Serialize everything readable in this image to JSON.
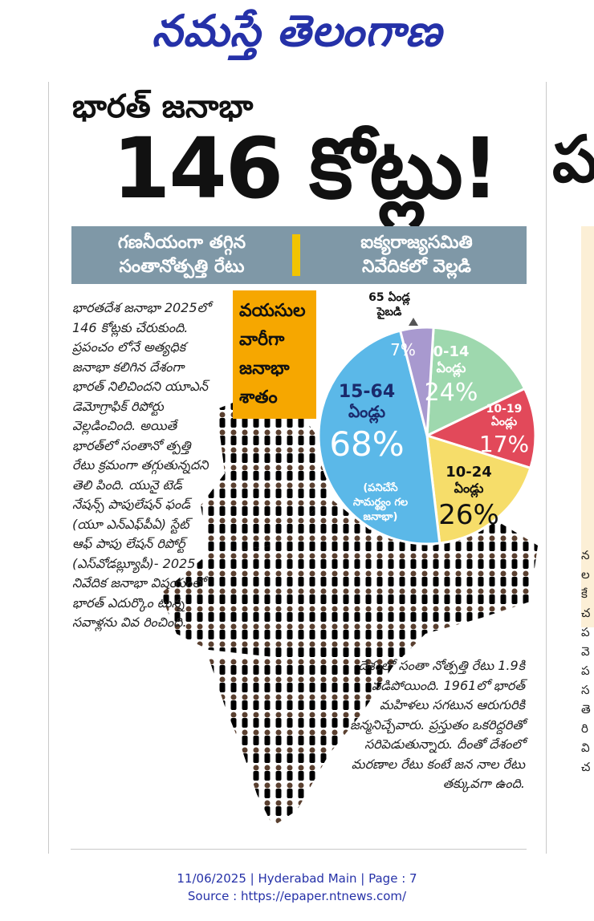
{
  "masthead": {
    "title": "నమస్తే తెలంగాణ"
  },
  "headline": {
    "line1": "భారత్ జనాభా",
    "line2": "146 కోట్లు!"
  },
  "banner": {
    "left_line1": "గణనీయంగా తగ్గిన",
    "left_line2": "సంతానోత్పత్తి రేటు",
    "right_line1": "ఐక్యరాజ్యసమితి",
    "right_line2": "నివేదికలో వెల్లడి"
  },
  "age_box": {
    "line1": "వయసుల",
    "line2": "వారీగా",
    "line3": "జనాభా",
    "line4": "శాతం"
  },
  "chart_data": {
    "type": "pie",
    "slices": [
      {
        "label": "0-14 ఏండ్లు",
        "value": 24,
        "color": "#9ed8ae"
      },
      {
        "label": "10-19 ఏండ్లు",
        "value": 17,
        "color": "#e2495a"
      },
      {
        "label": "10-24 ఏండ్లు",
        "value": 26,
        "color": "#f6dd6a"
      },
      {
        "label": "15-64 ఏండ్లు",
        "value": 68,
        "color": "#5bb8e8"
      },
      {
        "label": "65 ఏండ్ల పైబడి",
        "value": 7,
        "color": "#a899cf"
      }
    ],
    "pct_labels": {
      "s0": "24%",
      "s1": "17%",
      "s2": "26%",
      "s3": "68%",
      "s4": "7%"
    },
    "labels": {
      "s0a": "0-14",
      "s0b": "ఏండ్లు",
      "s1a": "10-19",
      "s1b": "ఏండ్లు",
      "s2a": "10-24",
      "s2b": "ఏండ్లు",
      "s3a": "15-64",
      "s3b": "ఏండ్లు",
      "s3c": "(పనిచేసే",
      "s3d": "సామర్థ్యం గల",
      "s3e": "జనాభా)",
      "s4a": "65 ఏండ్ల",
      "s4b": "పైబడి"
    }
  },
  "body_text": "భారతదేశ జనాభా 2025లో 146 కోట్లకు చేరుకుంది. ప్రపంచం లోనే అత్యధిక జనాభా కలిగిన దేశంగా భారత్ నిలిచిందని యూఎన్ డెమోగ్రాఫిక్ రిపోర్టు వెల్లడించింది. అయితే భారత్‌లో సంతానో త్పత్తి రేటు క్రమంగా తగ్గుతున్నదని తెలి పింది. యునై టెడ్ నేషన్స్ పాపులేషన్ ఫండ్ (యూ ఎన్‌ఎఫ్‌పీఏ) స్టేట్ ఆఫ్ పాపు లేషన్ రిపోర్ట్ (ఎస్‌వోడబ్ల్యూపీ)- 2025 నివేదిక జనాభా విషయంలో భారత్ ఎదుర్కొం టున్న సవాళ్లను వివ రించింది.",
  "side_text": "దేశంలో సంతా నోత్పత్తి రేటు 1.9కి పడిపోయింది. 1961లో భారత్ మహిళలు సగటున ఆరుగురికి జన్మనిచ్చేవారు. ప్రస్తుతం ఒకరిద్దరితో సరిపెడుతున్నారు. దీంతో దేశంలో మరణాల రేటు కంటే జన నాల రేటు తక్కువగా ఉంది.",
  "edge_text": "న ల కే చ ప వె ప స తె రి వి చ",
  "footer": {
    "line1": "11/06/2025 | Hyderabad Main | Page : 7",
    "line2": "Source : https://epaper.ntnews.com/"
  }
}
